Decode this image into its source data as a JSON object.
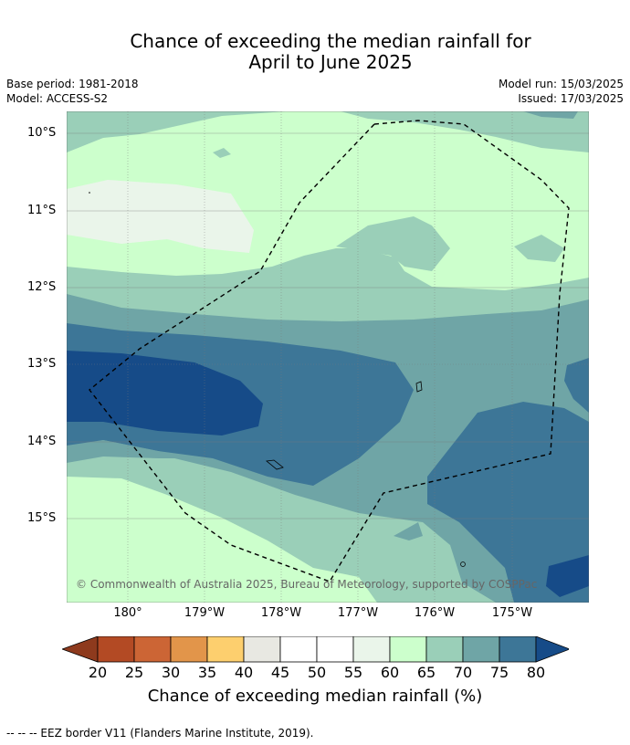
{
  "title": {
    "line1": "Chance of exceeding the median rainfall for",
    "line2": "April to June 2025"
  },
  "meta": {
    "base_period": "Base period: 1981-2018",
    "model": "Model: ACCESS-S2",
    "model_run": "Model run: 15/03/2025",
    "issued": "Issued: 17/03/2025"
  },
  "map": {
    "lat_labels": [
      "10°S",
      "11°S",
      "12°S",
      "13°S",
      "14°S",
      "15°S"
    ],
    "lon_labels": [
      "180°",
      "179°W",
      "178°W",
      "177°W",
      "176°W",
      "175°W"
    ],
    "copyright": "© Commonwealth of Australia 2025, Bureau of Meteorology, supported by COSPPac",
    "boundary_line": "EEZ border (dashed)"
  },
  "colorbar": {
    "labels": [
      "20",
      "25",
      "30",
      "35",
      "40",
      "45",
      "50",
      "55",
      "60",
      "65",
      "70",
      "75",
      "80"
    ],
    "colors": [
      "#8e3a1d",
      "#b34a24",
      "#cc6535",
      "#e2954a",
      "#fdcf6e",
      "#e8e8e2",
      "#ffffff",
      "#ffffff",
      "#eaf5ea",
      "#ccffcc",
      "#9acfb8",
      "#6fa5a6",
      "#3d7697",
      "#164b88"
    ],
    "title": "Chance of exceeding median rainfall (%)"
  },
  "footnote": "--  --  -- EEZ border V11 (Flanders Marine Institute, 2019)."
}
